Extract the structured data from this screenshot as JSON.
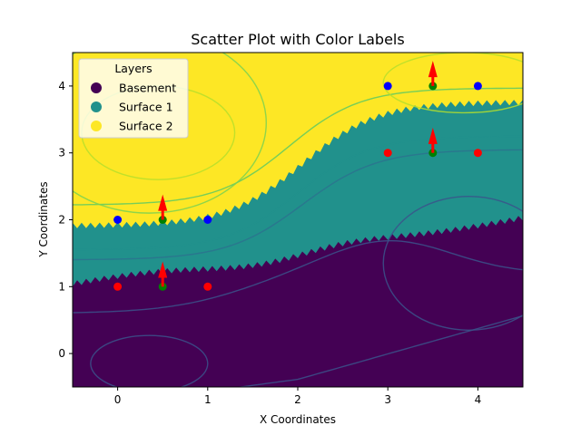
{
  "chart_data": {
    "type": "scatter",
    "title": "Scatter Plot with Color Labels",
    "xlabel": "X Coordinates",
    "ylabel": "Y Coordinates",
    "xlim": [
      -0.5,
      4.5
    ],
    "ylim": [
      -0.5,
      4.5
    ],
    "xticks": [
      0,
      1,
      2,
      3,
      4
    ],
    "yticks": [
      0,
      1,
      2,
      3,
      4
    ],
    "grid": false,
    "legend": {
      "title": "Layers",
      "placement": "top-left",
      "entries": [
        {
          "label": "Basement",
          "color": "#440154"
        },
        {
          "label": "Surface 1",
          "color": "#21918c"
        },
        {
          "label": "Surface 2",
          "color": "#fde725"
        }
      ]
    },
    "background_regions": {
      "colors": {
        "Basement": "#440154",
        "Surface 1": "#21918c",
        "Surface 2": "#fde725"
      }
    },
    "series": [
      {
        "color": "#0000ff",
        "points": [
          [
            0,
            2
          ],
          [
            1,
            2
          ],
          [
            3,
            4
          ],
          [
            4,
            4
          ]
        ]
      },
      {
        "color": "#008000",
        "points": [
          [
            0.5,
            2
          ],
          [
            0.5,
            1
          ],
          [
            3.5,
            4
          ],
          [
            3.5,
            3
          ]
        ]
      },
      {
        "color": "#ff0000",
        "points": [
          [
            0,
            1
          ],
          [
            1,
            1
          ],
          [
            3,
            3
          ],
          [
            4,
            3
          ]
        ]
      }
    ],
    "arrows": {
      "color": "#ff0000",
      "items": [
        {
          "x": 0.5,
          "y": 2,
          "dx": 0,
          "dy": 0.35
        },
        {
          "x": 0.5,
          "y": 1,
          "dx": 0,
          "dy": 0.35
        },
        {
          "x": 3.5,
          "y": 4,
          "dx": 0,
          "dy": 0.35
        },
        {
          "x": 3.5,
          "y": 3,
          "dx": 0,
          "dy": 0.35
        }
      ]
    }
  }
}
